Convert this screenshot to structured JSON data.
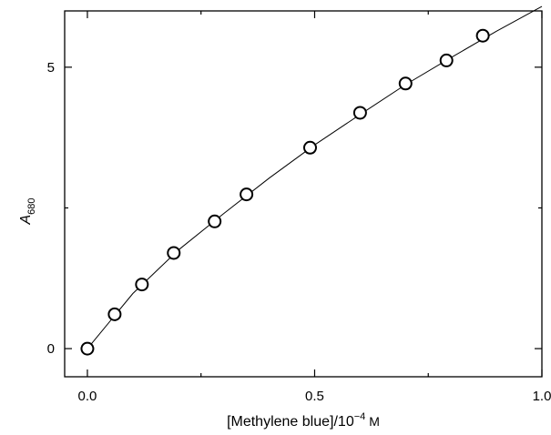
{
  "chart_data": {
    "type": "scatter",
    "xlabel": "[Methylene blue]/10",
    "xlabel_exponent": "−4",
    "xlabel_unit": "M",
    "ylabel": "A",
    "ylabel_subscript": "680",
    "xlim": [
      -0.05,
      1.0
    ],
    "ylim": [
      -0.5,
      6.0
    ],
    "x_ticks": [
      {
        "value": 0.0,
        "label": "0.0"
      },
      {
        "value": 0.5,
        "label": "0.5"
      },
      {
        "value": 1.0,
        "label": "1.0"
      }
    ],
    "x_minor_ticks": [
      0.25,
      0.75
    ],
    "y_ticks": [
      {
        "value": 0,
        "label": "0"
      },
      {
        "value": 5,
        "label": "5"
      }
    ],
    "y_minor_ticks": [
      2.5
    ],
    "grid": false,
    "legend": "none",
    "marker": "open-circle",
    "series": [
      {
        "x": [
          0.0,
          0.06,
          0.12,
          0.19,
          0.28,
          0.35,
          0.49,
          0.6,
          0.7,
          0.79,
          0.87
        ],
        "y": [
          0.0,
          0.61,
          1.14,
          1.7,
          2.26,
          2.74,
          3.57,
          4.19,
          4.71,
          5.12,
          5.56
        ]
      }
    ],
    "fit_curve": {
      "x": [
        0.0,
        0.1,
        0.2,
        0.3,
        0.4,
        0.5,
        0.6,
        0.7,
        0.8,
        0.9,
        1.0
      ],
      "y": [
        0.0,
        0.98,
        1.75,
        2.4,
        3.03,
        3.62,
        4.16,
        4.69,
        5.17,
        5.64,
        6.08
      ]
    }
  }
}
